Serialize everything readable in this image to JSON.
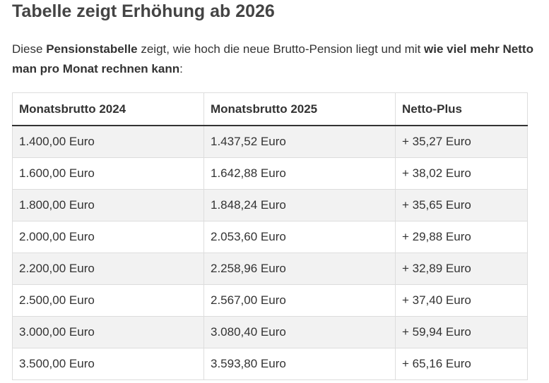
{
  "heading": "Tabelle zeigt Erhöhung ab 2026",
  "intro": {
    "part1": "Diese ",
    "bold1": "Pensionstabelle",
    "part2": " zeigt, wie hoch die neue Brutto-Pension liegt und mit ",
    "bold2": "wie viel mehr Netto man pro Monat rechnen kann",
    "part3": ":"
  },
  "table": {
    "headers": [
      "Monatsbrutto 2024",
      "Monatsbrutto 2025",
      "Netto-Plus"
    ],
    "rows": [
      [
        "1.400,00 Euro",
        "1.437,52 Euro",
        "+ 35,27 Euro"
      ],
      [
        "1.600,00 Euro",
        "1.642,88 Euro",
        "+ 38,02 Euro"
      ],
      [
        "1.800,00 Euro",
        "1.848,24 Euro",
        "+ 35,65 Euro"
      ],
      [
        "2.000,00 Euro",
        "2.053,60 Euro",
        "+ 29,88 Euro"
      ],
      [
        "2.200,00 Euro",
        "2.258,96 Euro",
        "+ 32,89 Euro"
      ],
      [
        "2.500,00 Euro",
        "2.567,00 Euro",
        "+ 37,40 Euro"
      ],
      [
        "3.000,00 Euro",
        "3.080,40 Euro",
        "+ 59,94 Euro"
      ],
      [
        "3.500,00 Euro",
        "3.593,80 Euro",
        "+ 65,16 Euro"
      ]
    ]
  }
}
